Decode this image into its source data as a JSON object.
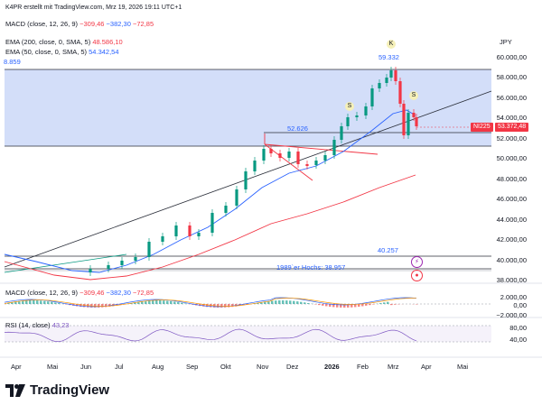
{
  "header": {
    "source_line": "K4PR erstellt mit TradingView.com, Mrz 19, 2026 19:11 UTC+1",
    "macd_title": "MACD (close, 12, 26, 9)",
    "macd_vals": [
      "−309,46",
      "−382,30",
      "−72,85"
    ],
    "ema200_title": "EMA (200, close, 0, SMA, 5)",
    "ema200_val": "48.586,10",
    "ema50_title": "EMA (50, close, 0, SMA, 5)",
    "ema50_val": "54.342,54",
    "partial_val": "8.859",
    "currency": "JPY"
  },
  "price_axis": [
    "60.000,00",
    "58.000,00",
    "56.000,00",
    "54.000,00",
    "52.000,00",
    "50.000,00",
    "48.000,00",
    "46.000,00",
    "44.000,00",
    "42.000,00",
    "40.000,00",
    "38.000,00"
  ],
  "price_tag": {
    "symbol": "NI225",
    "value": "53.372,48"
  },
  "annotations": {
    "high": "59.332",
    "level1": "52.626",
    "level2": "40.257",
    "level3": "1989`er Hochs: 38.957",
    "k_label": "K",
    "s_label": "S"
  },
  "macd_panel": {
    "title": "MACD (close, 12, 26, 9)",
    "vals": [
      "−309,46",
      "−382,30",
      "−72,85"
    ],
    "axis": [
      "2.000,00",
      "0,00",
      "−2.000,00"
    ]
  },
  "rsi_panel": {
    "title": "RSI (14, close)",
    "val": "43,23",
    "axis": [
      "80,00",
      "40,00"
    ]
  },
  "time_axis": [
    "Apr",
    "Mai",
    "Jun",
    "Jul",
    "Aug",
    "Sep",
    "Okt",
    "Nov",
    "Dez",
    "2026",
    "Feb",
    "Mrz",
    "Apr",
    "Mai"
  ],
  "brand": "TradingView",
  "colors": {
    "up": "#089981",
    "down": "#f23645",
    "ema50": "#2962ff",
    "ema200": "#f23645",
    "zone": "#d1dcf9",
    "trend": "#2a2e39"
  }
}
